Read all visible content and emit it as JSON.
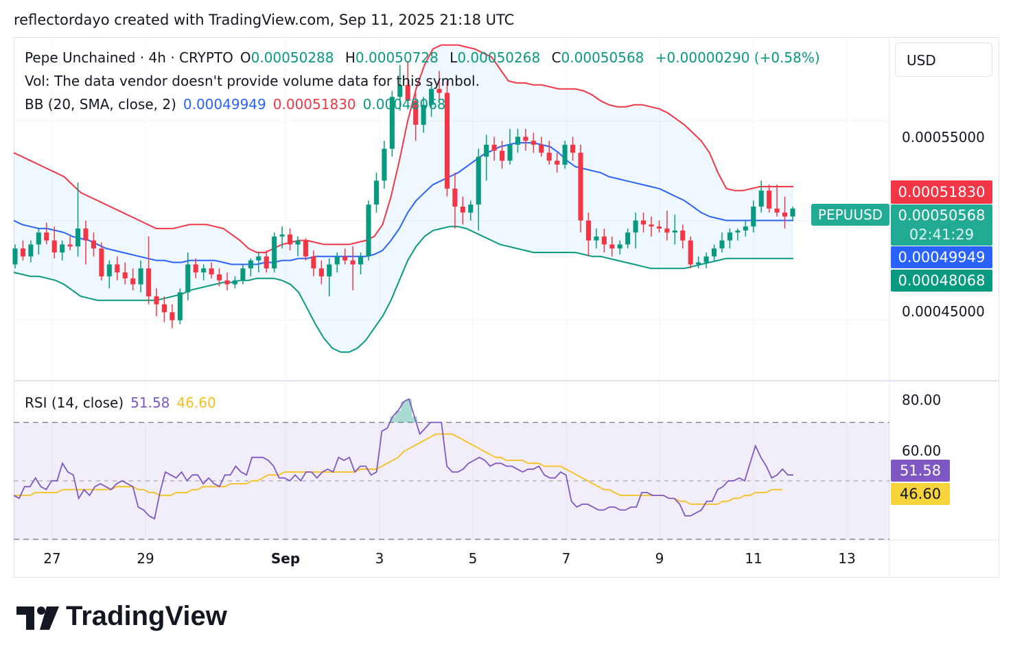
{
  "header": {
    "caption": "reflectordayo created with TradingView.com, Sep 11, 2025 21:18 UTC"
  },
  "legend": {
    "symbol": "Pepe Unchained · 4h · CRYPTO",
    "open_label": "O",
    "open": "0.00050288",
    "high_label": "H",
    "high": "0.00050728",
    "low_label": "L",
    "low": "0.00050268",
    "close_label": "C",
    "close": "0.00050568",
    "change": "+0.00000290 (+0.58%)",
    "volume_note": "Vol: The data vendor doesn't provide volume data for this symbol.",
    "bb_label": "BB (20, SMA, close, 2)",
    "bb_basis": "0.00049949",
    "bb_upper": "0.00051830",
    "bb_lower": "0.00048068",
    "rsi_label": "RSI (14, close)",
    "rsi_value": "51.58",
    "rsi_ma": "46.60"
  },
  "currency": "USD",
  "price_axis": {
    "tick_high": "0.00055000",
    "tick_low": "0.00045000"
  },
  "price_tags": {
    "upper": "0.00051830",
    "last": "0.00050568",
    "countdown": "02:41:29",
    "basis": "0.00049949",
    "lower": "0.00048068",
    "symbol": "PEPUUSD"
  },
  "rsi_axis": {
    "tick_80": "80.00",
    "tick_60": "60.00",
    "value_tag": "51.58",
    "ma_tag": "46.60"
  },
  "time_axis": [
    "27",
    "29",
    "Sep",
    "3",
    "5",
    "7",
    "9",
    "11",
    "13"
  ],
  "brand": "TradingView",
  "colors": {
    "up": "#089981",
    "down": "#f23645",
    "basis": "#2962ff",
    "upper": "#f23645",
    "lower": "#089981",
    "rsi": "#7e57c2",
    "rsi_ma": "#f5c01c"
  },
  "chart_data": {
    "type": "candlestick",
    "title": "Pepe Unchained · 4h · CRYPTO",
    "x_categories": [
      "27",
      "29",
      "Sep",
      "3",
      "5",
      "7",
      "9",
      "11",
      "13"
    ],
    "y_range": [
      0.00042,
      0.000592
    ],
    "candles": [
      [
        0.000478,
        0.000488,
        0.000476,
        0.000486
      ],
      [
        0.000486,
        0.00049,
        0.00048,
        0.000482
      ],
      [
        0.000482,
        0.00049,
        0.000479,
        0.000488
      ],
      [
        0.000488,
        0.000496,
        0.000483,
        0.000494
      ],
      [
        0.000494,
        0.000499,
        0.000488,
        0.00049
      ],
      [
        0.00049,
        0.000497,
        0.000481,
        0.000484
      ],
      [
        0.000484,
        0.00049,
        0.00048,
        0.000488
      ],
      [
        0.000488,
        0.000492,
        0.000485,
        0.000487
      ],
      [
        0.000487,
        0.000519,
        0.000482,
        0.000496
      ],
      [
        0.000496,
        0.0005,
        0.000478,
        0.00049
      ],
      [
        0.00049,
        0.000494,
        0.000482,
        0.000486
      ],
      [
        0.000486,
        0.000489,
        0.00047,
        0.000472
      ],
      [
        0.000472,
        0.00048,
        0.000466,
        0.000478
      ],
      [
        0.000478,
        0.000482,
        0.00047,
        0.000474
      ],
      [
        0.000474,
        0.000479,
        0.000468,
        0.000471
      ],
      [
        0.000471,
        0.000476,
        0.000465,
        0.000468
      ],
      [
        0.000468,
        0.00048,
        0.000464,
        0.000476
      ],
      [
        0.000476,
        0.000492,
        0.000458,
        0.000462
      ],
      [
        0.000462,
        0.000466,
        0.000452,
        0.000458
      ],
      [
        0.000458,
        0.000462,
        0.000449,
        0.000454
      ],
      [
        0.000454,
        0.000458,
        0.000446,
        0.00045
      ],
      [
        0.00045,
        0.000466,
        0.000448,
        0.000464
      ],
      [
        0.000464,
        0.000484,
        0.00046,
        0.000478
      ],
      [
        0.000478,
        0.000481,
        0.000471,
        0.000474
      ],
      [
        0.000474,
        0.000478,
        0.00047,
        0.000476
      ],
      [
        0.000476,
        0.000479,
        0.000471,
        0.000473
      ],
      [
        0.000473,
        0.000476,
        0.000467,
        0.00047
      ],
      [
        0.00047,
        0.000474,
        0.000465,
        0.000468
      ],
      [
        0.000468,
        0.000472,
        0.000466,
        0.00047
      ],
      [
        0.00047,
        0.000478,
        0.000468,
        0.000476
      ],
      [
        0.000476,
        0.000481,
        0.000472,
        0.00048
      ],
      [
        0.00048,
        0.000484,
        0.000474,
        0.000482
      ],
      [
        0.000482,
        0.000485,
        0.000474,
        0.000476
      ],
      [
        0.000476,
        0.000494,
        0.000474,
        0.000492
      ],
      [
        0.000492,
        0.000497,
        0.000486,
        0.000493
      ],
      [
        0.000493,
        0.000496,
        0.000485,
        0.000488
      ],
      [
        0.000488,
        0.000492,
        0.000482,
        0.00049
      ],
      [
        0.00049,
        0.000491,
        0.00048,
        0.000482
      ],
      [
        0.000482,
        0.000485,
        0.000472,
        0.000476
      ],
      [
        0.000476,
        0.00048,
        0.000468,
        0.000472
      ],
      [
        0.000472,
        0.000481,
        0.000462,
        0.000478
      ],
      [
        0.000478,
        0.000484,
        0.000474,
        0.000482
      ],
      [
        0.000482,
        0.000486,
        0.000478,
        0.00048
      ],
      [
        0.00048,
        0.000487,
        0.000465,
        0.000478
      ],
      [
        0.000478,
        0.000484,
        0.000473,
        0.000482
      ],
      [
        0.000482,
        0.00051,
        0.00048,
        0.000508
      ],
      [
        0.000508,
        0.000524,
        0.000504,
        0.00052
      ],
      [
        0.00052,
        0.00054,
        0.000516,
        0.000536
      ],
      [
        0.000536,
        0.000565,
        0.000532,
        0.000562
      ],
      [
        0.000562,
        0.000578,
        0.000555,
        0.000568
      ],
      [
        0.000568,
        0.00058,
        0.000556,
        0.00056
      ],
      [
        0.00056,
        0.000564,
        0.00054,
        0.000548
      ],
      [
        0.000548,
        0.000562,
        0.000544,
        0.000558
      ],
      [
        0.000558,
        0.000568,
        0.000552,
        0.000566
      ],
      [
        0.000566,
        0.000575,
        0.00056,
        0.000564
      ],
      [
        0.000564,
        0.00057,
        0.000512,
        0.000516
      ],
      [
        0.000516,
        0.000524,
        0.000496,
        0.000507
      ],
      [
        0.000507,
        0.000512,
        0.000498,
        0.000504
      ],
      [
        0.000504,
        0.00051,
        0.0005,
        0.000508
      ],
      [
        0.000508,
        0.000536,
        0.000495,
        0.000532
      ],
      [
        0.000532,
        0.000543,
        0.00052,
        0.000538
      ],
      [
        0.000538,
        0.000542,
        0.00053,
        0.000535
      ],
      [
        0.000535,
        0.00054,
        0.000526,
        0.00053
      ],
      [
        0.00053,
        0.000546,
        0.000528,
        0.000538
      ],
      [
        0.000538,
        0.000546,
        0.000534,
        0.000542
      ],
      [
        0.000542,
        0.000546,
        0.000535,
        0.00054
      ],
      [
        0.00054,
        0.000544,
        0.000534,
        0.000538
      ],
      [
        0.000538,
        0.000542,
        0.000532,
        0.000534
      ],
      [
        0.000534,
        0.00054,
        0.000528,
        0.00053
      ],
      [
        0.00053,
        0.000534,
        0.000524,
        0.000528
      ],
      [
        0.000528,
        0.00054,
        0.000526,
        0.000538
      ],
      [
        0.000538,
        0.000542,
        0.00053,
        0.000534
      ],
      [
        0.000534,
        0.000538,
        0.000494,
        0.0005
      ],
      [
        0.0005,
        0.000504,
        0.000482,
        0.00049
      ],
      [
        0.00049,
        0.000496,
        0.000486,
        0.000492
      ],
      [
        0.000492,
        0.000496,
        0.000484,
        0.000488
      ],
      [
        0.000488,
        0.000492,
        0.000482,
        0.000486
      ],
      [
        0.000486,
        0.00049,
        0.000483,
        0.000488
      ],
      [
        0.000488,
        0.000496,
        0.000486,
        0.000494
      ],
      [
        0.000494,
        0.000504,
        0.000486,
        0.0005
      ],
      [
        0.0005,
        0.000504,
        0.000494,
        0.000498
      ],
      [
        0.000498,
        0.000502,
        0.000492,
        0.000497
      ],
      [
        0.000497,
        0.0005,
        0.000494,
        0.000496
      ],
      [
        0.000496,
        0.000505,
        0.00049,
        0.000494
      ],
      [
        0.000494,
        0.000503,
        0.000488,
        0.000495
      ],
      [
        0.000495,
        0.000498,
        0.000486,
        0.00049
      ],
      [
        0.00049,
        0.000492,
        0.000476,
        0.000478
      ],
      [
        0.000478,
        0.000482,
        0.000476,
        0.000479
      ],
      [
        0.000479,
        0.000484,
        0.000476,
        0.000482
      ],
      [
        0.000482,
        0.000488,
        0.00048,
        0.000486
      ],
      [
        0.000486,
        0.000494,
        0.000484,
        0.00049
      ],
      [
        0.00049,
        0.000496,
        0.000486,
        0.000494
      ],
      [
        0.000494,
        0.000496,
        0.00049,
        0.000495
      ],
      [
        0.000495,
        0.0005,
        0.000492,
        0.000497
      ],
      [
        0.000497,
        0.00051,
        0.000494,
        0.000507
      ],
      [
        0.000507,
        0.00052,
        0.000504,
        0.000515
      ],
      [
        0.000515,
        0.000518,
        0.000504,
        0.000506
      ],
      [
        0.000506,
        0.000518,
        0.000502,
        0.000504
      ],
      [
        0.000504,
        0.000512,
        0.000496,
        0.000502
      ],
      [
        0.000502,
        0.000507,
        0.0005,
        0.000506
      ]
    ],
    "bb_upper": [
      0.000534,
      0.000532,
      0.00053,
      0.000528,
      0.000526,
      0.000524,
      0.000522,
      0.000518,
      0.000514,
      0.000512,
      0.00051,
      0.000508,
      0.000506,
      0.000504,
      0.000502,
      0.0005,
      0.000498,
      0.000496,
      0.000496,
      0.000496,
      0.000497,
      0.000498,
      0.000498,
      0.000498,
      0.000497,
      0.000496,
      0.000493,
      0.00049,
      0.000486,
      0.000484,
      0.000484,
      0.000486,
      0.000488,
      0.000489,
      0.00049,
      0.00049,
      0.000489,
      0.000488,
      0.000488,
      0.000488,
      0.000488,
      0.000489,
      0.00049,
      0.000492,
      0.000498,
      0.000512,
      0.00053,
      0.00055,
      0.000566,
      0.000578,
      0.000586,
      0.000588,
      0.000588,
      0.000588,
      0.000587,
      0.000586,
      0.000584,
      0.000582,
      0.000576,
      0.00057,
      0.000569,
      0.000569,
      0.000568,
      0.000568,
      0.000567,
      0.000566,
      0.000566,
      0.000566,
      0.000565,
      0.000563,
      0.00056,
      0.000558,
      0.000557,
      0.000557,
      0.000558,
      0.000558,
      0.000557,
      0.000556,
      0.000554,
      0.000551,
      0.000548,
      0.000544,
      0.00054,
      0.000534,
      0.000524,
      0.000516,
      0.000515,
      0.000515,
      0.000516,
      0.000517,
      0.000517,
      0.000517,
      0.000517,
      0.000517
    ],
    "bb_basis": [
      0.0005,
      0.000498,
      0.000497,
      0.000496,
      0.000496,
      0.000495,
      0.000494,
      0.000492,
      0.000491,
      0.00049,
      0.000488,
      0.000486,
      0.000485,
      0.000484,
      0.000483,
      0.000482,
      0.000481,
      0.00048,
      0.00048,
      0.000479,
      0.000479,
      0.00048,
      0.00048,
      0.00048,
      0.00048,
      0.000479,
      0.000478,
      0.000478,
      0.000478,
      0.000478,
      0.000479,
      0.000479,
      0.00048,
      0.00048,
      0.000481,
      0.000481,
      0.000482,
      0.000482,
      0.000482,
      0.000482,
      0.000482,
      0.000482,
      0.000482,
      0.000483,
      0.000485,
      0.00049,
      0.000496,
      0.000504,
      0.00051,
      0.000514,
      0.000518,
      0.00052,
      0.000522,
      0.000524,
      0.000527,
      0.00053,
      0.000533,
      0.000535,
      0.000537,
      0.000538,
      0.000539,
      0.000539,
      0.000539,
      0.000538,
      0.000537,
      0.000534,
      0.00053,
      0.000527,
      0.000526,
      0.000525,
      0.000524,
      0.000522,
      0.000521,
      0.00052,
      0.000519,
      0.000518,
      0.000517,
      0.000516,
      0.000514,
      0.000512,
      0.00051,
      0.000507,
      0.000504,
      0.000502,
      0.000501,
      0.0005,
      0.0005,
      0.0005,
      0.0005,
      0.0005,
      0.0005,
      0.0005,
      0.0005,
      0.0005
    ],
    "bb_lower": [
      0.000474,
      0.000473,
      0.000472,
      0.000472,
      0.000471,
      0.00047,
      0.000468,
      0.000465,
      0.000462,
      0.000461,
      0.00046,
      0.00046,
      0.00046,
      0.00046,
      0.00046,
      0.00046,
      0.00046,
      0.00046,
      0.000461,
      0.000462,
      0.000463,
      0.000465,
      0.000466,
      0.000467,
      0.000468,
      0.000469,
      0.000469,
      0.00047,
      0.00047,
      0.000471,
      0.000471,
      0.000471,
      0.00047,
      0.000468,
      0.000464,
      0.000456,
      0.000448,
      0.000441,
      0.000436,
      0.000434,
      0.000434,
      0.000436,
      0.00044,
      0.000446,
      0.000452,
      0.00046,
      0.00047,
      0.00048,
      0.000487,
      0.000492,
      0.000495,
      0.000496,
      0.000497,
      0.000497,
      0.000496,
      0.000494,
      0.000492,
      0.00049,
      0.000488,
      0.000487,
      0.000486,
      0.000485,
      0.000484,
      0.000484,
      0.000484,
      0.000484,
      0.000484,
      0.000484,
      0.000483,
      0.000482,
      0.000482,
      0.000481,
      0.00048,
      0.000479,
      0.000478,
      0.000477,
      0.000476,
      0.000476,
      0.000476,
      0.000476,
      0.000476,
      0.000477,
      0.000478,
      0.000479,
      0.00048,
      0.000481,
      0.000481,
      0.000481,
      0.000481,
      0.000481,
      0.000481,
      0.000481,
      0.000481,
      0.000481
    ],
    "rsi_range": [
      30,
      84
    ],
    "rsi_bands": [
      30,
      70
    ],
    "rsi": [
      45,
      44,
      48,
      48,
      51,
      48,
      47,
      50,
      50,
      56,
      53,
      52,
      44,
      47,
      45,
      48,
      49,
      48,
      47,
      49,
      50,
      49,
      48,
      41,
      40,
      38,
      37,
      46,
      53,
      52,
      51,
      53,
      50,
      52,
      52,
      49,
      51,
      49,
      48,
      52,
      52,
      55,
      53,
      52,
      58,
      58,
      58,
      57,
      55,
      51,
      51,
      50,
      52,
      50,
      53,
      53,
      51,
      53,
      54,
      53,
      58,
      57,
      58,
      53,
      55,
      55,
      52,
      53,
      67,
      68,
      72,
      74,
      77,
      78,
      72,
      66,
      68,
      70,
      70,
      70,
      55,
      53,
      53,
      54,
      56,
      57,
      58,
      57,
      55,
      56,
      56,
      55,
      55,
      54,
      53,
      54,
      54,
      55,
      52,
      51,
      51,
      53,
      52,
      43,
      41,
      42,
      42,
      41,
      40,
      40,
      41,
      41,
      40,
      40,
      41,
      41,
      46,
      46,
      45,
      45,
      45,
      44,
      44,
      42,
      38,
      38,
      39,
      40,
      43,
      43,
      47,
      48,
      50,
      50,
      51,
      50,
      56,
      62,
      58,
      55,
      51,
      52,
      54,
      52,
      52
    ],
    "rsi_ma": [
      45,
      45,
      45,
      45,
      46,
      46,
      46,
      46,
      46,
      47,
      47,
      47,
      47,
      47,
      47,
      47,
      47,
      47,
      47,
      48,
      48,
      48,
      48,
      47,
      47,
      46,
      46,
      45,
      45,
      45,
      46,
      46,
      46,
      47,
      47,
      48,
      48,
      48,
      48,
      48,
      49,
      49,
      49,
      49,
      50,
      50,
      51,
      52,
      52,
      52,
      53,
      53,
      53,
      53,
      53,
      53,
      53,
      53,
      53,
      53,
      53,
      53,
      53,
      53,
      54,
      54,
      54,
      54,
      55,
      56,
      57,
      58,
      60,
      61,
      62,
      63,
      64,
      65,
      66,
      66,
      66,
      66,
      65,
      64,
      63,
      62,
      61,
      60,
      59,
      58,
      58,
      57,
      57,
      57,
      57,
      56,
      56,
      56,
      55,
      55,
      55,
      55,
      54,
      53,
      52,
      51,
      50,
      49,
      48,
      47,
      47,
      46,
      45,
      45,
      45,
      45,
      45,
      45,
      45,
      45,
      45,
      44,
      44,
      43,
      43,
      42,
      42,
      42,
      42,
      42,
      42,
      43,
      43,
      44,
      44,
      45,
      45,
      46,
      46,
      46,
      47,
      47,
      47
    ]
  }
}
